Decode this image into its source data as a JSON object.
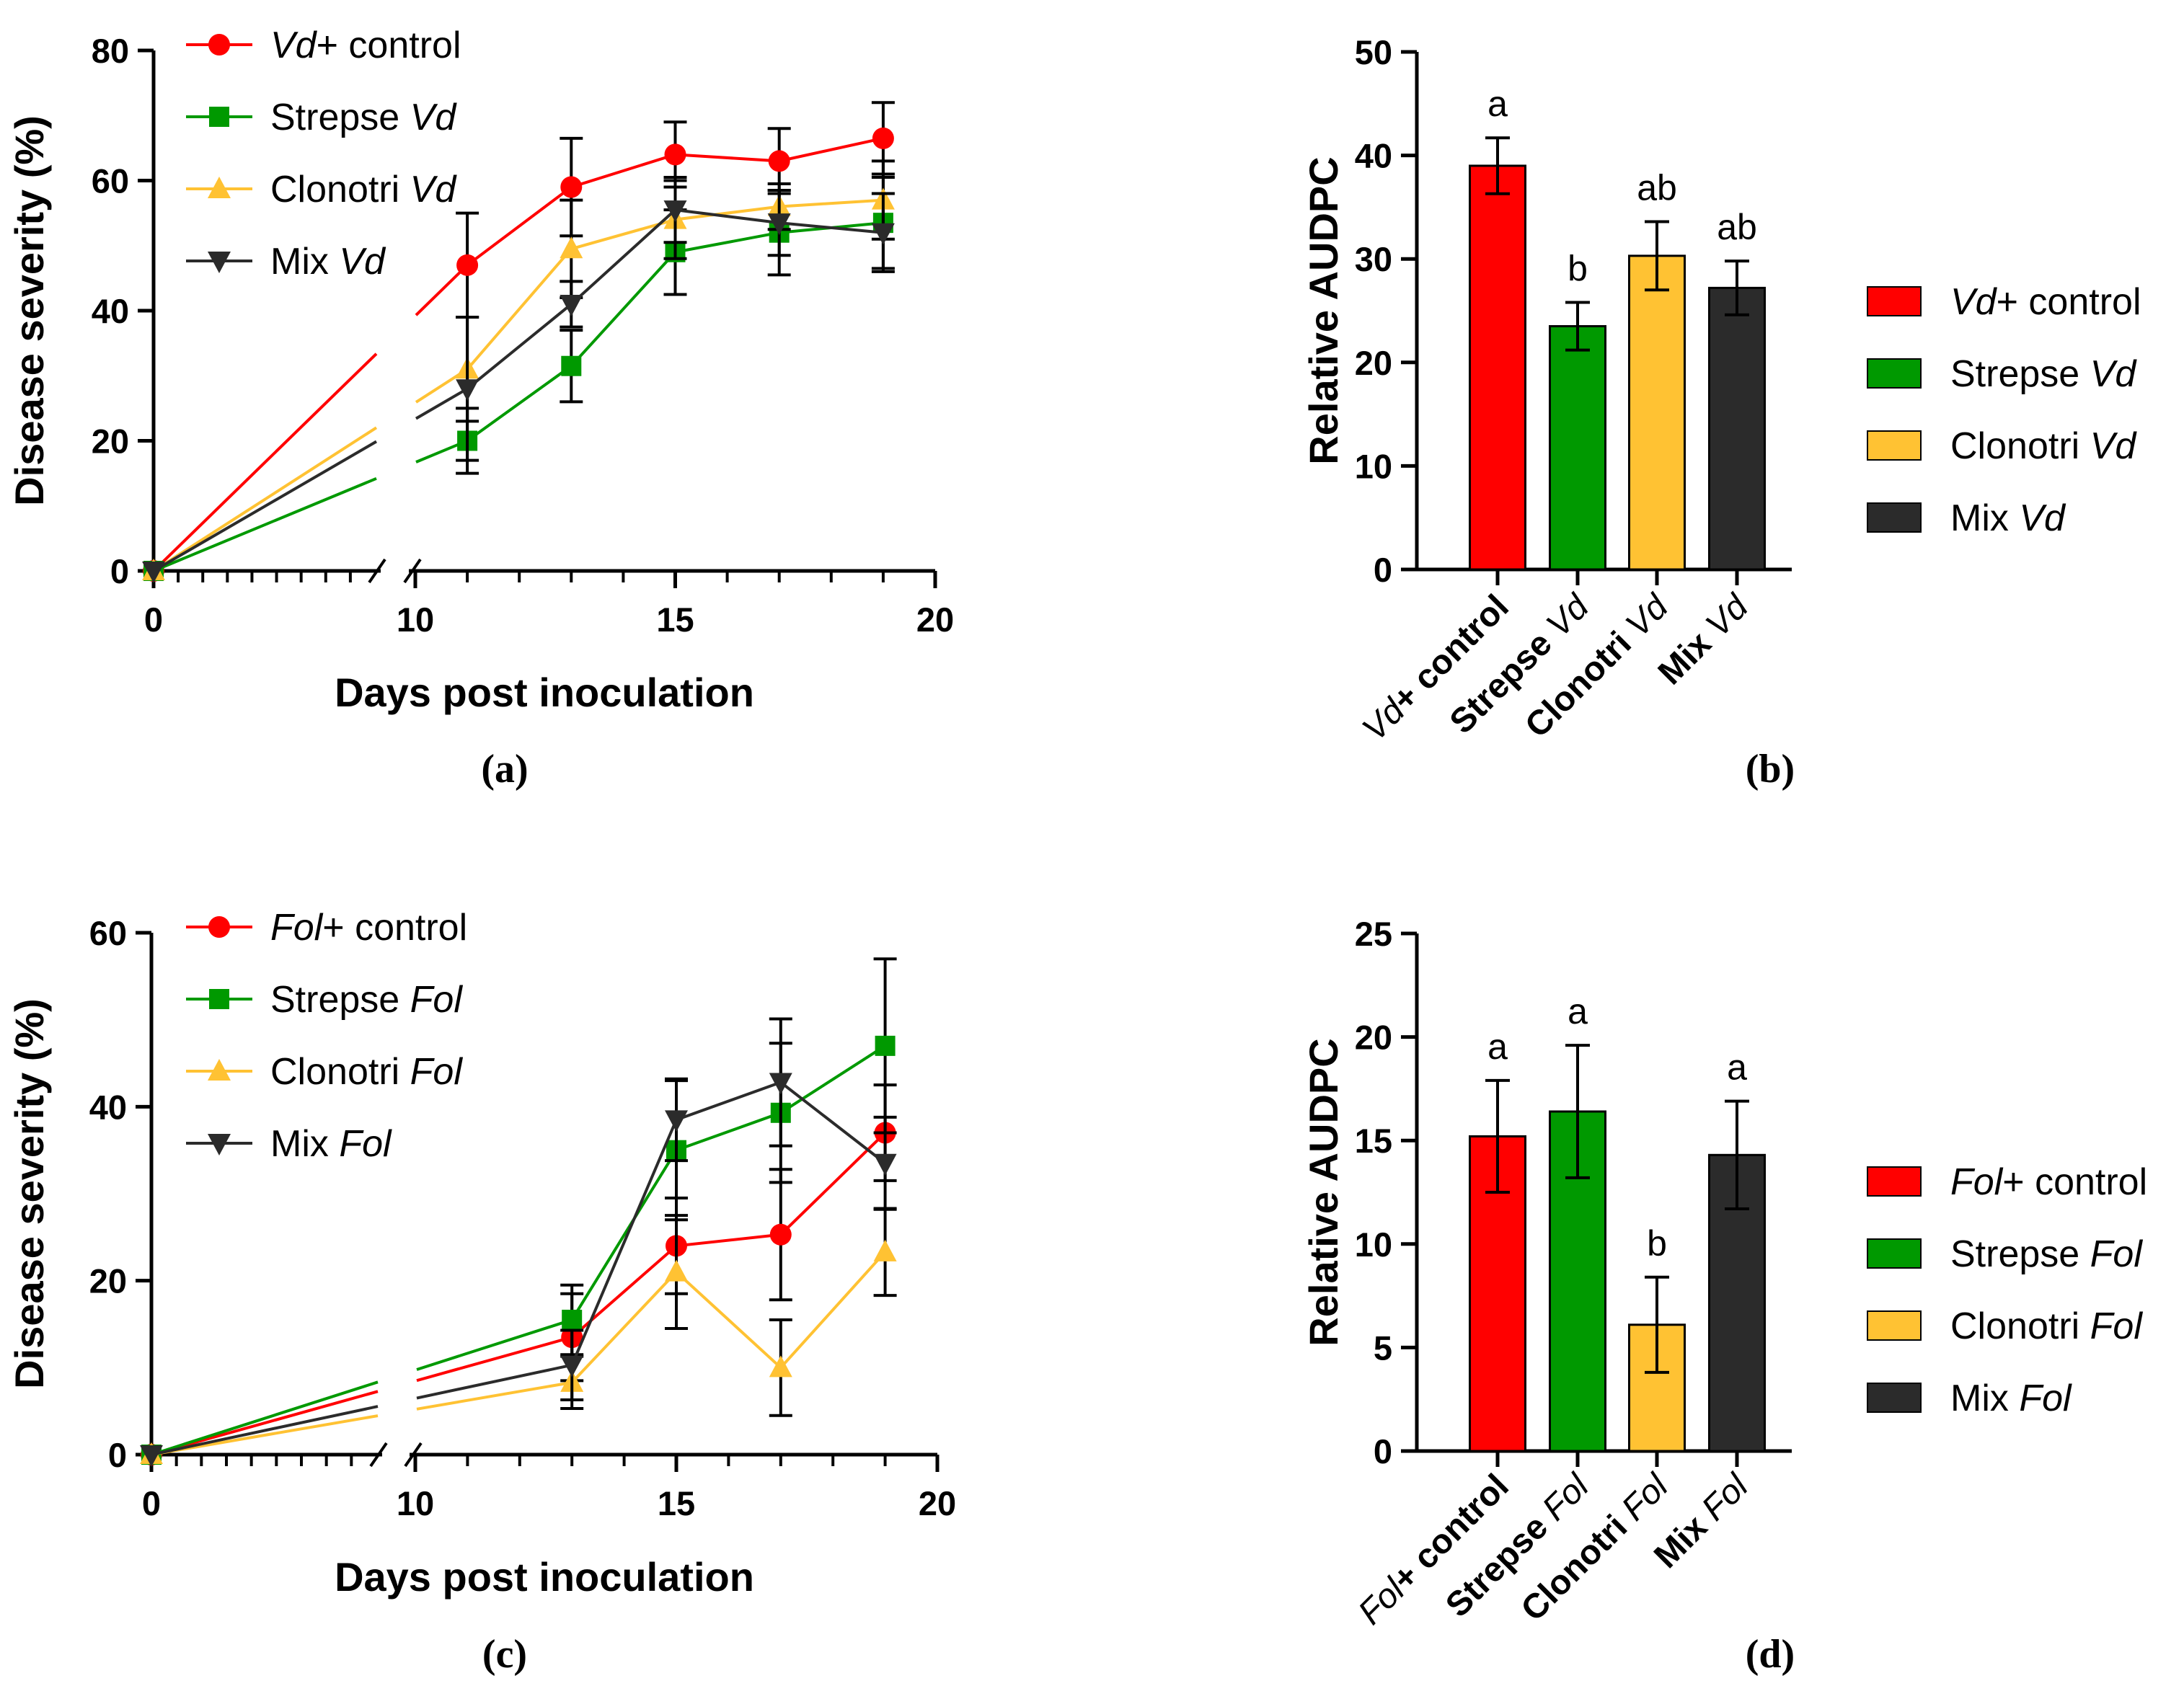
{
  "colors": {
    "red": "#ff0000",
    "green": "#009900",
    "orange": "#ffc233",
    "dark": "#2b2b2b",
    "axis": "#000000"
  },
  "chart_data": [
    {
      "id": "a",
      "type": "line",
      "panel_label": "(a)",
      "xlabel": "Days post inoculation",
      "ylabel": "Disease severity (%)",
      "xticks": [
        "0",
        "10",
        "15",
        "20"
      ],
      "yticks": [
        "0",
        "20",
        "40",
        "60",
        "80"
      ],
      "xlim": [
        0,
        20
      ],
      "ylim": [
        0,
        80
      ],
      "axis_break": [
        9,
        10
      ],
      "series": [
        {
          "name": "Vd+ control",
          "name_italic": "Vd",
          "name_rest": "+ control",
          "italic_first": true,
          "color": "red",
          "marker": "circle",
          "x": [
            0,
            11,
            13,
            15,
            17,
            19
          ],
          "y": [
            0,
            47,
            59,
            64,
            63,
            66.5
          ],
          "err": [
            0,
            8,
            7.5,
            5,
            5,
            5.5
          ]
        },
        {
          "name": "Strepse Vd",
          "name_plain": "Strepse ",
          "name_italic": "Vd",
          "italic_first": false,
          "color": "green",
          "marker": "square",
          "x": [
            0,
            11,
            13,
            15,
            17,
            19
          ],
          "y": [
            0,
            20,
            31.5,
            49,
            52,
            53.5
          ],
          "err": [
            0,
            5,
            5.5,
            6.5,
            6.5,
            7
          ]
        },
        {
          "name": "Clonotri Vd",
          "name_plain": "Clonotri ",
          "name_italic": "Vd",
          "italic_first": false,
          "color": "orange",
          "marker": "triangle-up",
          "x": [
            0,
            11,
            13,
            15,
            17,
            19
          ],
          "y": [
            0,
            31,
            49.5,
            54,
            56,
            57
          ],
          "err": [
            0,
            8,
            7.5,
            6,
            3.5,
            6
          ]
        },
        {
          "name": "Mix Vd",
          "name_plain": "Mix ",
          "name_italic": "Vd",
          "italic_first": false,
          "color": "dark",
          "marker": "triangle-down",
          "x": [
            0,
            11,
            13,
            15,
            17,
            19
          ],
          "y": [
            0,
            28,
            41,
            55.5,
            53.5,
            52
          ],
          "err": [
            0,
            11,
            3.5,
            5,
            5,
            6
          ]
        }
      ]
    },
    {
      "id": "b",
      "type": "bar",
      "panel_label": "(b)",
      "ylabel": "Relative AUDPC",
      "yticks": [
        "0",
        "10",
        "20",
        "30",
        "40",
        "50"
      ],
      "ylim": [
        0,
        50
      ],
      "categories": [
        {
          "italic": "Vd",
          "bold": "+ control",
          "italic_first": true
        },
        {
          "bold": "Strepse ",
          "italic": "Vd",
          "italic_first": false
        },
        {
          "bold": "Clonotri ",
          "italic": "Vd",
          "italic_first": false
        },
        {
          "bold": "Mix ",
          "italic": "Vd",
          "italic_first": false
        }
      ],
      "values": [
        39,
        23.5,
        30.3,
        27.2
      ],
      "errors": [
        2.7,
        2.3,
        3.3,
        2.6
      ],
      "letters": [
        "a",
        "b",
        "ab",
        "ab"
      ],
      "bar_colors": [
        "red",
        "green",
        "orange",
        "dark"
      ],
      "legend": [
        {
          "name": "Vd+ control",
          "italic": "Vd",
          "plain": "+ control",
          "italic_first": true,
          "color": "red"
        },
        {
          "name": "Strepse Vd",
          "plain": "Strepse ",
          "italic": "Vd",
          "italic_first": false,
          "color": "green"
        },
        {
          "name": "Clonotri Vd",
          "plain": "Clonotri ",
          "italic": "Vd",
          "italic_first": false,
          "color": "orange"
        },
        {
          "name": "Mix Vd",
          "plain": "Mix ",
          "italic": "Vd",
          "italic_first": false,
          "color": "dark"
        }
      ]
    },
    {
      "id": "c",
      "type": "line",
      "panel_label": "(c)",
      "xlabel": "Days post inoculation",
      "ylabel": "Disease severity (%)",
      "xticks": [
        "0",
        "10",
        "15",
        "20"
      ],
      "yticks": [
        "0",
        "20",
        "40",
        "60"
      ],
      "xlim": [
        0,
        20
      ],
      "ylim": [
        0,
        60
      ],
      "axis_break": [
        9,
        10
      ],
      "series": [
        {
          "name": "Fol+ control",
          "name_italic": "Fol",
          "name_rest": "+ control",
          "italic_first": true,
          "color": "red",
          "marker": "circle",
          "x": [
            0,
            13,
            15,
            17,
            19
          ],
          "y": [
            0,
            13.5,
            24,
            25.3,
            37
          ],
          "err": [
            0,
            5,
            5.5,
            7.5,
            5.5
          ]
        },
        {
          "name": "Strepse Fol",
          "name_plain": "Strepse ",
          "name_italic": "Fol",
          "italic_first": false,
          "color": "green",
          "marker": "square",
          "x": [
            0,
            13,
            15,
            17,
            19
          ],
          "y": [
            0,
            15.5,
            35,
            39.3,
            47
          ],
          "err": [
            0,
            4,
            8,
            8,
            10
          ]
        },
        {
          "name": "Clonotri Fol",
          "name_plain": "Clonotri ",
          "name_italic": "Fol",
          "italic_first": false,
          "color": "orange",
          "marker": "triangle-up",
          "x": [
            0,
            13,
            15,
            17,
            19
          ],
          "y": [
            0,
            8.3,
            21,
            10,
            23.3
          ],
          "err": [
            0,
            3,
            6.5,
            5.5,
            5
          ]
        },
        {
          "name": "Mix Fol",
          "name_plain": "Mix ",
          "name_italic": "Fol",
          "italic_first": false,
          "color": "dark",
          "marker": "triangle-down",
          "x": [
            0,
            13,
            15,
            17,
            19
          ],
          "y": [
            0,
            10.3,
            38.5,
            42.8,
            33.5
          ],
          "err": [
            0,
            4,
            4.7,
            7.3,
            5.3
          ]
        }
      ]
    },
    {
      "id": "d",
      "type": "bar",
      "panel_label": "(d)",
      "ylabel": "Relative AUDPC",
      "yticks": [
        "0",
        "5",
        "10",
        "15",
        "20",
        "25"
      ],
      "ylim": [
        0,
        25
      ],
      "categories": [
        {
          "italic": "Fol",
          "bold": "+ control",
          "italic_first": true
        },
        {
          "bold": "Strepse ",
          "italic": "Fol",
          "italic_first": false
        },
        {
          "bold": "Clonotri ",
          "italic": "Fol",
          "italic_first": false
        },
        {
          "bold": "Mix ",
          "italic": "Fol",
          "italic_first": false
        }
      ],
      "values": [
        15.2,
        16.4,
        6.1,
        14.3
      ],
      "errors": [
        2.7,
        3.2,
        2.3,
        2.6
      ],
      "letters": [
        "a",
        "a",
        "b",
        "a"
      ],
      "bar_colors": [
        "red",
        "green",
        "orange",
        "dark"
      ],
      "legend": [
        {
          "name": "Fol+ control",
          "italic": "Fol",
          "plain": "+ control",
          "italic_first": true,
          "color": "red"
        },
        {
          "name": "Strepse Fol",
          "plain": "Strepse ",
          "italic": "Fol",
          "italic_first": false,
          "color": "green"
        },
        {
          "name": "Clonotri Fol",
          "plain": "Clonotri ",
          "italic": "Fol",
          "italic_first": false,
          "color": "orange"
        },
        {
          "name": "Mix Fol",
          "plain": "Mix ",
          "italic": "Fol",
          "italic_first": false,
          "color": "dark"
        }
      ]
    }
  ]
}
